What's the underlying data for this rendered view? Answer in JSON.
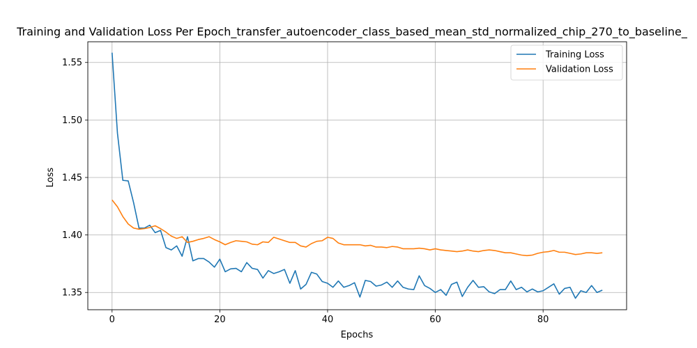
{
  "chart_data": {
    "type": "line",
    "title": "Training and Validation Loss Per Epoch_transfer_autoencoder_class_based_mean_std_normalized_chip_270_to_baseline_",
    "xlabel": "Epochs",
    "ylabel": "Loss",
    "xlim": [
      -4.5,
      95.5
    ],
    "ylim": [
      1.335,
      1.568
    ],
    "xticks": [
      0,
      20,
      40,
      60,
      80
    ],
    "yticks": [
      1.35,
      1.4,
      1.45,
      1.5,
      1.55
    ],
    "xtick_labels": [
      "0",
      "20",
      "40",
      "60",
      "80"
    ],
    "ytick_labels": [
      "1.35",
      "1.40",
      "1.45",
      "1.50",
      "1.55"
    ],
    "grid": true,
    "legend_position": "top-right",
    "series": [
      {
        "name": "Training Loss",
        "color": "#1f77b4",
        "values": [
          1.5585,
          1.4885,
          1.4475,
          1.447,
          1.428,
          1.406,
          1.406,
          1.4085,
          1.402,
          1.404,
          1.389,
          1.387,
          1.3905,
          1.3815,
          1.3985,
          1.3775,
          1.3795,
          1.3795,
          1.3765,
          1.372,
          1.379,
          1.368,
          1.3705,
          1.371,
          1.368,
          1.376,
          1.371,
          1.37,
          1.3625,
          1.369,
          1.3665,
          1.368,
          1.37,
          1.358,
          1.369,
          1.353,
          1.357,
          1.3675,
          1.366,
          1.3595,
          1.358,
          1.3545,
          1.36,
          1.3545,
          1.356,
          1.3585,
          1.346,
          1.3605,
          1.3595,
          1.3555,
          1.3565,
          1.359,
          1.3545,
          1.36,
          1.3545,
          1.353,
          1.3525,
          1.3645,
          1.356,
          1.3535,
          1.35,
          1.3525,
          1.3475,
          1.357,
          1.359,
          1.3465,
          1.3545,
          1.3605,
          1.3545,
          1.355,
          1.3505,
          1.349,
          1.3525,
          1.3525,
          1.36,
          1.3525,
          1.3545,
          1.3505,
          1.353,
          1.3505,
          1.3515,
          1.3545,
          1.3575,
          1.3485,
          1.3535,
          1.3545,
          1.345,
          1.3515,
          1.35,
          1.356,
          1.35,
          1.352
        ]
      },
      {
        "name": "Validation Loss",
        "color": "#ff7f0e",
        "values": [
          1.4305,
          1.4245,
          1.416,
          1.4095,
          1.406,
          1.405,
          1.4055,
          1.4065,
          1.408,
          1.4055,
          1.4025,
          1.399,
          1.397,
          1.3985,
          1.3935,
          1.3945,
          1.396,
          1.397,
          1.3985,
          1.396,
          1.394,
          1.3915,
          1.3935,
          1.395,
          1.3945,
          1.394,
          1.392,
          1.3915,
          1.394,
          1.3935,
          1.398,
          1.3965,
          1.395,
          1.3935,
          1.3935,
          1.3905,
          1.3895,
          1.3925,
          1.3945,
          1.395,
          1.398,
          1.397,
          1.393,
          1.3915,
          1.3915,
          1.3915,
          1.3915,
          1.3905,
          1.391,
          1.3895,
          1.3895,
          1.389,
          1.39,
          1.3895,
          1.388,
          1.388,
          1.388,
          1.3885,
          1.388,
          1.387,
          1.388,
          1.387,
          1.3865,
          1.386,
          1.3855,
          1.386,
          1.387,
          1.386,
          1.3855,
          1.3865,
          1.387,
          1.3865,
          1.3855,
          1.3845,
          1.3845,
          1.3835,
          1.3825,
          1.382,
          1.3825,
          1.384,
          1.385,
          1.3855,
          1.3865,
          1.385,
          1.385,
          1.384,
          1.383,
          1.3835,
          1.3845,
          1.3845,
          1.384,
          1.3845
        ]
      }
    ]
  }
}
